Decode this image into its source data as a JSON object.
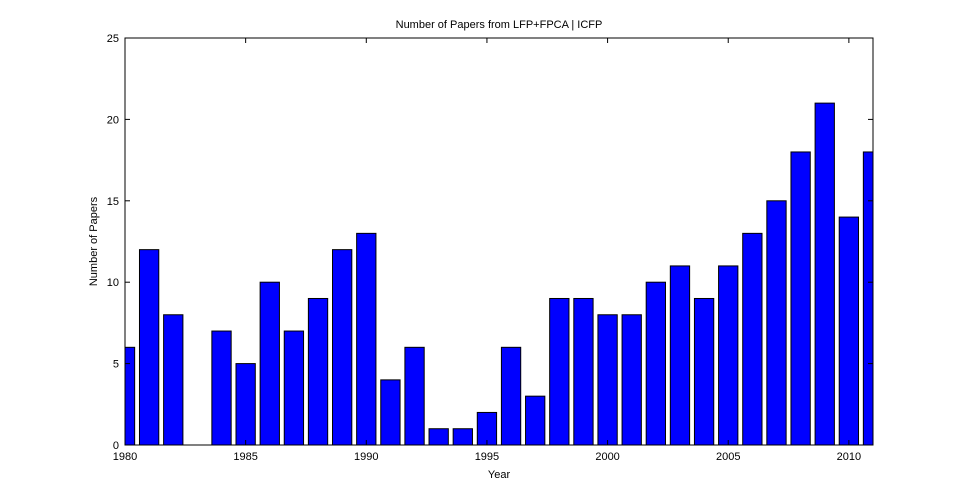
{
  "chart_data": {
    "type": "bar",
    "title": "Number of Papers from LFP+FPCA | ICFP",
    "xlabel": "Year",
    "ylabel": "Number of Papers",
    "x": [
      1980,
      1981,
      1982,
      1983,
      1984,
      1985,
      1986,
      1987,
      1988,
      1989,
      1990,
      1991,
      1992,
      1993,
      1994,
      1995,
      1996,
      1997,
      1998,
      1999,
      2000,
      2001,
      2002,
      2003,
      2004,
      2005,
      2006,
      2007,
      2008,
      2009,
      2010,
      2011
    ],
    "values": [
      6,
      12,
      8,
      0,
      7,
      5,
      10,
      7,
      9,
      12,
      13,
      4,
      6,
      1,
      1,
      2,
      6,
      3,
      9,
      9,
      8,
      8,
      10,
      11,
      9,
      11,
      13,
      15,
      18,
      21,
      14,
      18
    ],
    "xlim": [
      1980,
      2011
    ],
    "ylim": [
      0,
      25
    ],
    "xticks": [
      1980,
      1985,
      1990,
      1995,
      2000,
      2005,
      2010
    ],
    "yticks": [
      0,
      5,
      10,
      15,
      20,
      25
    ],
    "bar_color": "#0000ff",
    "grid": false
  }
}
